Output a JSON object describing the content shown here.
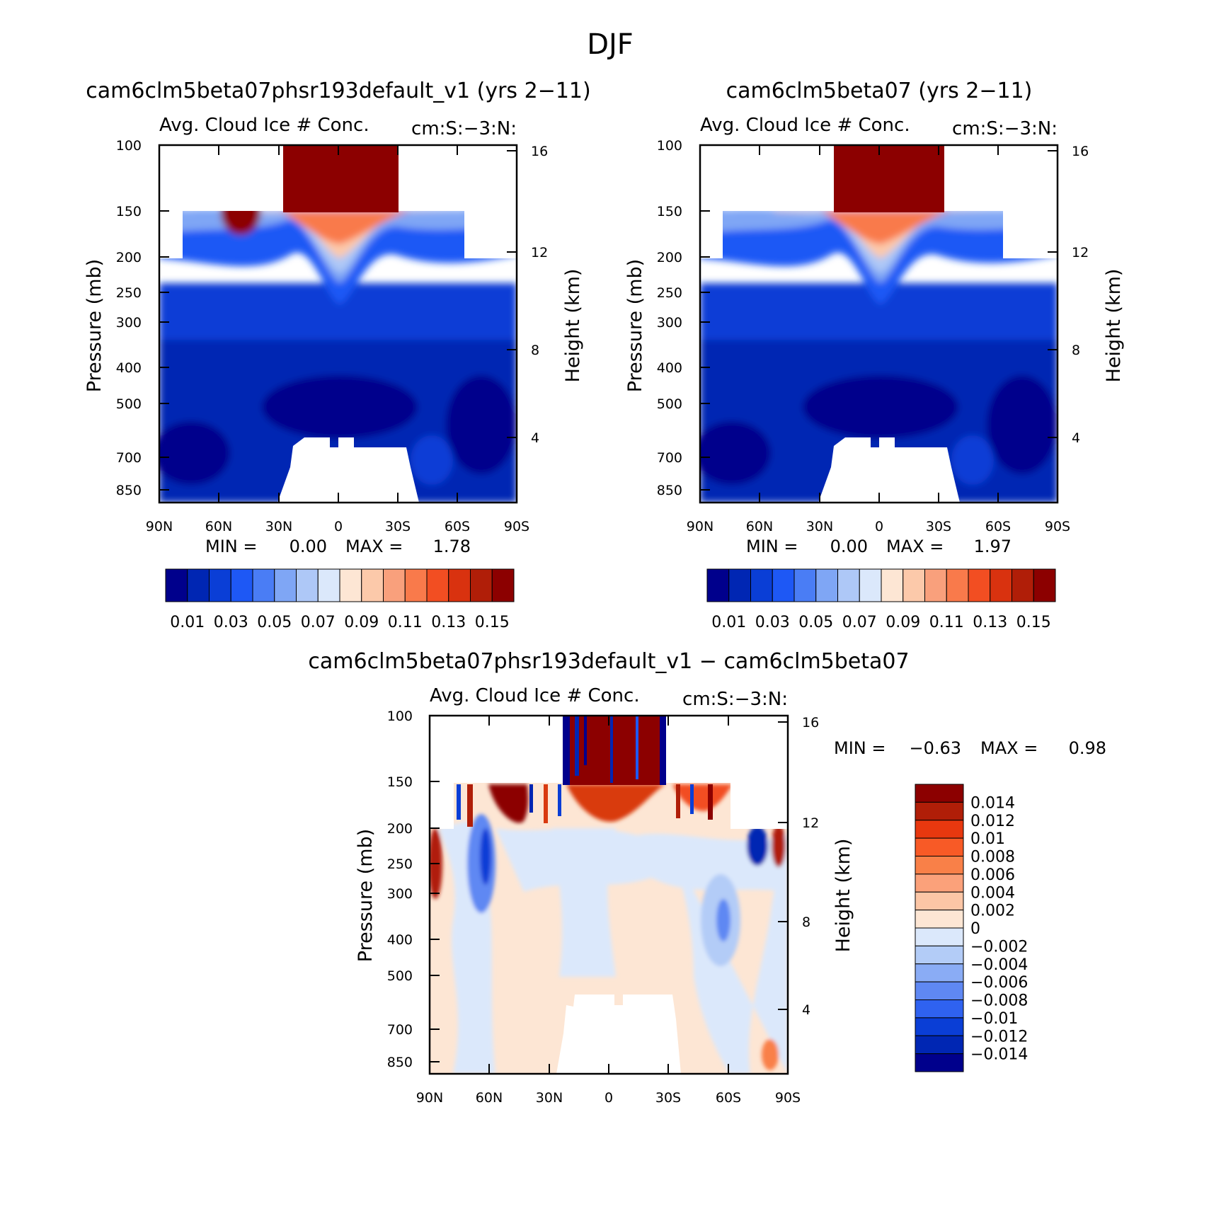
{
  "figure": {
    "title": "DJF"
  },
  "chart_data": [
    {
      "type": "contour",
      "title": "cam6clm5beta07phsr193default_v1 (yrs 2-11)",
      "left_subtitle": "Avg. Cloud Ice # Conc.",
      "right_subtitle": "cm:S:-3:N:",
      "xlabel": "",
      "ylabel": "Pressure (mb)",
      "y2label": "Height (km)",
      "x_ticks": [
        "90N",
        "60N",
        "30N",
        "0",
        "30S",
        "60S",
        "90S"
      ],
      "y_ticks": [
        "100",
        "150",
        "200",
        "250",
        "300",
        "400",
        "500",
        "700",
        "850"
      ],
      "y2_ticks": [
        "16",
        "12",
        "8",
        "4"
      ],
      "min_label": "MIN =",
      "min_value": "0.00",
      "max_label": "MAX =",
      "max_value": "1.78",
      "levels": [
        "0.01",
        "0.03",
        "0.05",
        "0.07",
        "0.09",
        "0.11",
        "0.13",
        "0.15"
      ],
      "colors": [
        "#00008c",
        "#0026b3",
        "#0a3ed6",
        "#1e58f5",
        "#4a7df5",
        "#7fa6f5",
        "#aec8f7",
        "#dbe8fb",
        "#fde6d4",
        "#fcc9aa",
        "#f9a07c",
        "#f97a4b",
        "#f24e22",
        "#d9320f",
        "#b01e08",
        "#8c0000"
      ]
    },
    {
      "type": "contour",
      "title": "cam6clm5beta07 (yrs 2-11)",
      "left_subtitle": "Avg. Cloud Ice # Conc.",
      "right_subtitle": "cm:S:-3:N:",
      "xlabel": "",
      "ylabel": "Pressure (mb)",
      "y2label": "Height (km)",
      "x_ticks": [
        "90N",
        "60N",
        "30N",
        "0",
        "30S",
        "60S",
        "90S"
      ],
      "y_ticks": [
        "100",
        "150",
        "200",
        "250",
        "300",
        "400",
        "500",
        "700",
        "850"
      ],
      "y2_ticks": [
        "16",
        "12",
        "8",
        "4"
      ],
      "min_label": "MIN =",
      "min_value": "0.00",
      "max_label": "MAX =",
      "max_value": "1.97",
      "levels": [
        "0.01",
        "0.03",
        "0.05",
        "0.07",
        "0.09",
        "0.11",
        "0.13",
        "0.15"
      ],
      "colors": [
        "#00008c",
        "#0026b3",
        "#0a3ed6",
        "#1e58f5",
        "#4a7df5",
        "#7fa6f5",
        "#aec8f7",
        "#dbe8fb",
        "#fde6d4",
        "#fcc9aa",
        "#f9a07c",
        "#f97a4b",
        "#f24e22",
        "#d9320f",
        "#b01e08",
        "#8c0000"
      ]
    },
    {
      "type": "contour",
      "title": "cam6clm5beta07phsr193default_v1 - cam6clm5beta07",
      "left_subtitle": "Avg. Cloud Ice # Conc.",
      "right_subtitle": "cm:S:-3:N:",
      "xlabel": "",
      "ylabel": "Pressure (mb)",
      "y2label": "Height (km)",
      "x_ticks": [
        "90N",
        "60N",
        "30N",
        "0",
        "30S",
        "60S",
        "90S"
      ],
      "y_ticks": [
        "100",
        "150",
        "200",
        "250",
        "300",
        "400",
        "500",
        "700",
        "850"
      ],
      "y2_ticks": [
        "16",
        "12",
        "8",
        "4"
      ],
      "min_label": "MIN =",
      "min_value": "-0.63",
      "max_label": "MAX =",
      "max_value": "0.98",
      "levels": [
        "0.014",
        "0.012",
        "0.01",
        "0.008",
        "0.006",
        "0.004",
        "0.002",
        "0",
        "-0.002",
        "-0.004",
        "-0.006",
        "-0.008",
        "-0.01",
        "-0.012",
        "-0.014"
      ],
      "colors": [
        "#8c0000",
        "#b01e08",
        "#e8380f",
        "#f85a26",
        "#f98048",
        "#fba17a",
        "#fcc6a6",
        "#fde6d4",
        "#dbe8fb",
        "#b3ccf7",
        "#8aacf5",
        "#5f88f3",
        "#2f62f0",
        "#0a3ed6",
        "#0026b3",
        "#00008c"
      ]
    }
  ]
}
